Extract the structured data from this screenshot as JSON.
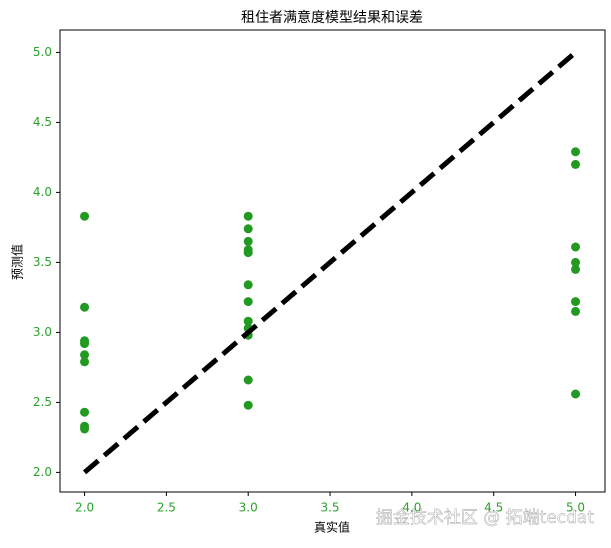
{
  "chart_data": {
    "type": "scatter",
    "title": "租住者满意度模型结果和误差",
    "x_label": "真实值",
    "y_label": "预测值",
    "xlim": [
      1.85,
      5.18
    ],
    "ylim": [
      1.86,
      5.16
    ],
    "xticks": [
      {
        "value": 2,
        "label": "2.0"
      },
      {
        "value": 2.5,
        "label": "2.5"
      },
      {
        "value": 3,
        "label": "3.0"
      },
      {
        "value": 3.5,
        "label": "3.5"
      },
      {
        "value": 4,
        "label": "4.0"
      },
      {
        "value": 4.5,
        "label": "4.5"
      },
      {
        "value": 5,
        "label": "5.0"
      }
    ],
    "yticks": [
      {
        "value": 2,
        "label": "2.0"
      },
      {
        "value": 2.5,
        "label": "2.5"
      },
      {
        "value": 3,
        "label": "3.0"
      },
      {
        "value": 3.5,
        "label": "3.5"
      },
      {
        "value": 4,
        "label": "4.0"
      },
      {
        "value": 4.5,
        "label": "4.5"
      },
      {
        "value": 5,
        "label": "5.0"
      }
    ],
    "tick_color": "#2ca02c",
    "series": [
      {
        "color": "#229a22",
        "x": [
          2,
          2,
          2,
          2,
          2,
          2,
          2,
          2,
          2,
          3,
          3,
          3,
          3,
          3,
          3,
          3,
          3,
          3,
          3,
          3,
          3,
          5,
          5,
          5,
          5,
          5,
          5,
          5,
          5
        ],
        "values": [
          3.83,
          3.18,
          2.94,
          2.92,
          2.84,
          2.79,
          2.43,
          2.33,
          2.31,
          3.83,
          3.74,
          3.65,
          3.59,
          3.57,
          3.34,
          3.22,
          3.08,
          3.03,
          2.98,
          2.66,
          2.48,
          4.29,
          4.2,
          3.61,
          3.5,
          3.45,
          3.22,
          3.15,
          2.56
        ]
      }
    ],
    "reference_line": {
      "color": "#000000",
      "dashed": true,
      "x": [
        2,
        5
      ],
      "values": [
        2,
        5
      ]
    },
    "watermark": "掘金技术社区 @ 拓端tecdat"
  }
}
